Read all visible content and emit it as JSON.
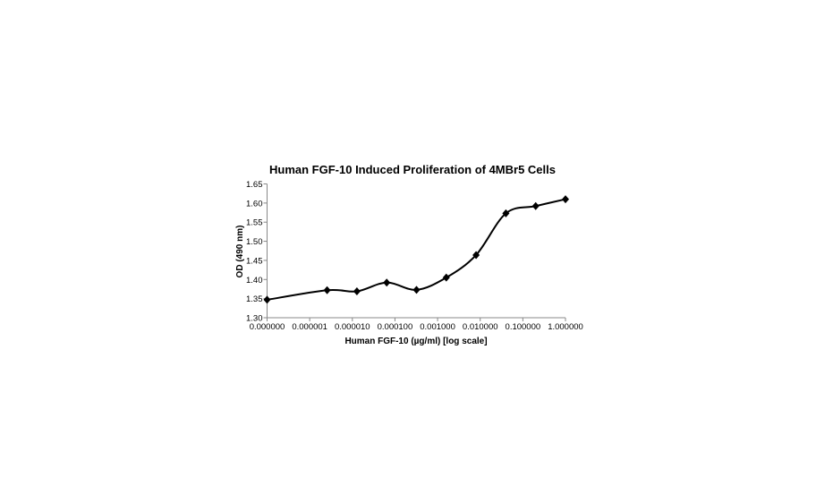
{
  "chart_data": {
    "type": "line",
    "title": "Human FGF-10 Induced Proliferation of 4MBr5 Cells",
    "xlabel": "Human FGF-10 (µg/ml) [log scale]",
    "ylabel": "OD (490 nm)",
    "x_scale": "log",
    "xlim": [
      1e-07,
      1
    ],
    "ylim": [
      1.3,
      1.65
    ],
    "x_tick_values": [
      1e-07,
      1e-06,
      1e-05,
      0.0001,
      0.001,
      0.01,
      0.1,
      1
    ],
    "x_tick_labels": [
      "0.000000",
      "0.000001",
      "0.000010",
      "0.000100",
      "0.001000",
      "0.010000",
      "0.100000",
      "1.000000"
    ],
    "y_ticks": [
      1.3,
      1.35,
      1.4,
      1.45,
      1.5,
      1.55,
      1.6,
      1.65
    ],
    "y_tick_labels": [
      "1.30",
      "1.35",
      "1.40",
      "1.45",
      "1.50",
      "1.55",
      "1.60",
      "1.65"
    ],
    "grid": false,
    "legend": "none",
    "marker": "diamond",
    "line_style": "smooth",
    "color": "#000000",
    "series": [
      {
        "x": [
          1e-07,
          2.56e-06,
          1.28e-05,
          6.4e-05,
          0.00032,
          0.0016,
          0.008,
          0.04,
          0.2,
          1
        ],
        "values": [
          1.347,
          1.372,
          1.369,
          1.392,
          1.373,
          1.405,
          1.464,
          1.573,
          1.592,
          1.61
        ]
      }
    ]
  }
}
